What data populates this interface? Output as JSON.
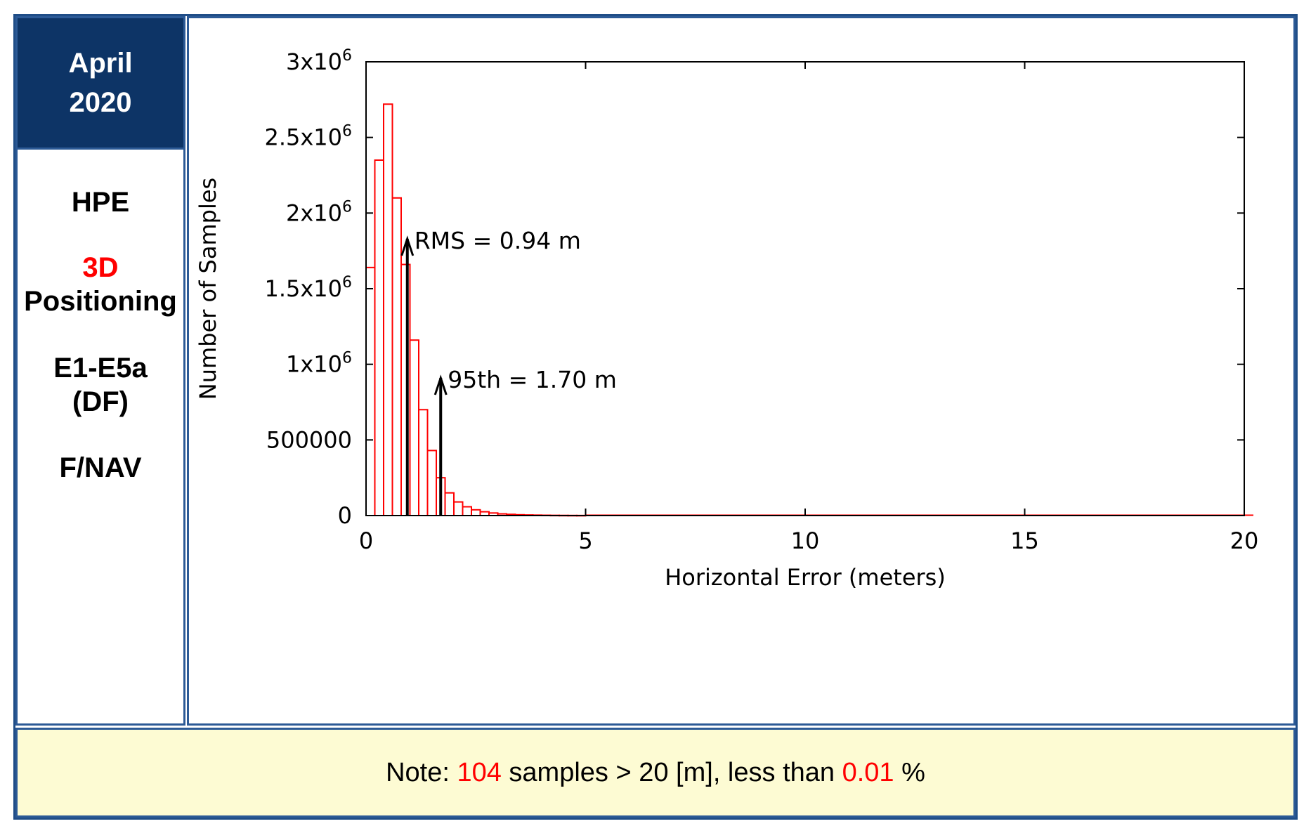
{
  "header": {
    "month": "April",
    "year": "2020"
  },
  "side_panel": {
    "metric": "HPE",
    "dimension": "3D",
    "mode": "Positioning",
    "signal_line1": "E1-E5a",
    "signal_line2": "(DF)",
    "message": "F/NAV"
  },
  "note": {
    "prefix": "Note: ",
    "count": "104",
    "middle": " samples > 20 [m], less than ",
    "percent": "0.01",
    "suffix": " %"
  },
  "colors": {
    "header_bg": "#0d3466",
    "border": "#2c5a96",
    "bars": "#ff0000",
    "highlight_text": "#ff0000",
    "note_bg": "#fdfbd3"
  },
  "chart_data": {
    "type": "bar",
    "xlabel": "Horizontal Error (meters)",
    "ylabel": "Number of Samples",
    "xlim": [
      0,
      20
    ],
    "ylim": [
      0,
      3000000
    ],
    "xticks": [
      {
        "value": 0,
        "label": "0"
      },
      {
        "value": 5,
        "label": "5"
      },
      {
        "value": 10,
        "label": "10"
      },
      {
        "value": 15,
        "label": "15"
      },
      {
        "value": 20,
        "label": "20"
      }
    ],
    "yticks": [
      {
        "value": 0,
        "label": "0",
        "sup": ""
      },
      {
        "value": 500000,
        "label": "500000",
        "sup": ""
      },
      {
        "value": 1000000,
        "label": "1x10",
        "sup": "6"
      },
      {
        "value": 1500000,
        "label": "1.5x10",
        "sup": "6"
      },
      {
        "value": 2000000,
        "label": "2x10",
        "sup": "6"
      },
      {
        "value": 2500000,
        "label": "2.5x10",
        "sup": "6"
      },
      {
        "value": 3000000,
        "label": "3x10",
        "sup": "6"
      }
    ],
    "bin_width": 0.2,
    "bin_starts": [
      0,
      0.2,
      0.4,
      0.6,
      0.8,
      1.0,
      1.2,
      1.4,
      1.6,
      1.8,
      2.0,
      2.2,
      2.4,
      2.6,
      2.8,
      3.0,
      3.2,
      3.4,
      3.6,
      3.8,
      4.0,
      4.2,
      4.4,
      4.6,
      4.8
    ],
    "values": [
      1640000,
      2350000,
      2720000,
      2100000,
      1660000,
      1160000,
      700000,
      430000,
      250000,
      150000,
      90000,
      58000,
      38000,
      25000,
      17000,
      11000,
      8000,
      5500,
      4000,
      3000,
      2200,
      1600,
      1200,
      900,
      700
    ],
    "markers": [
      {
        "label": "RMS = 0.94 m",
        "x": 0.94,
        "y_top": 1830000
      },
      {
        "label": "95th = 1.70 m",
        "x": 1.7,
        "y_top": 910000
      }
    ],
    "grid": false,
    "legend": "none"
  }
}
